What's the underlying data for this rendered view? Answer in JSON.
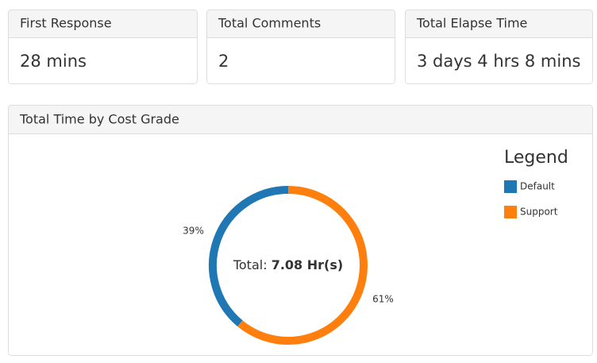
{
  "cards": [
    {
      "title": "First Response",
      "value": "28 mins"
    },
    {
      "title": "Total Comments",
      "value": "2"
    },
    {
      "title": "Total Elapse Time",
      "value": "3 days 4 hrs 8 mins"
    }
  ],
  "chart_data": {
    "type": "pie",
    "title": "Total Time by Cost Grade",
    "categories": [
      "Default",
      "Support"
    ],
    "values": [
      39,
      61
    ],
    "value_labels": [
      "39%",
      "61%"
    ],
    "colors": [
      "#1f77b4",
      "#ff7f0e"
    ],
    "center_label": "Total:",
    "center_value": "7.08 Hr(s)",
    "legend_title": "Legend",
    "legend": "right"
  }
}
